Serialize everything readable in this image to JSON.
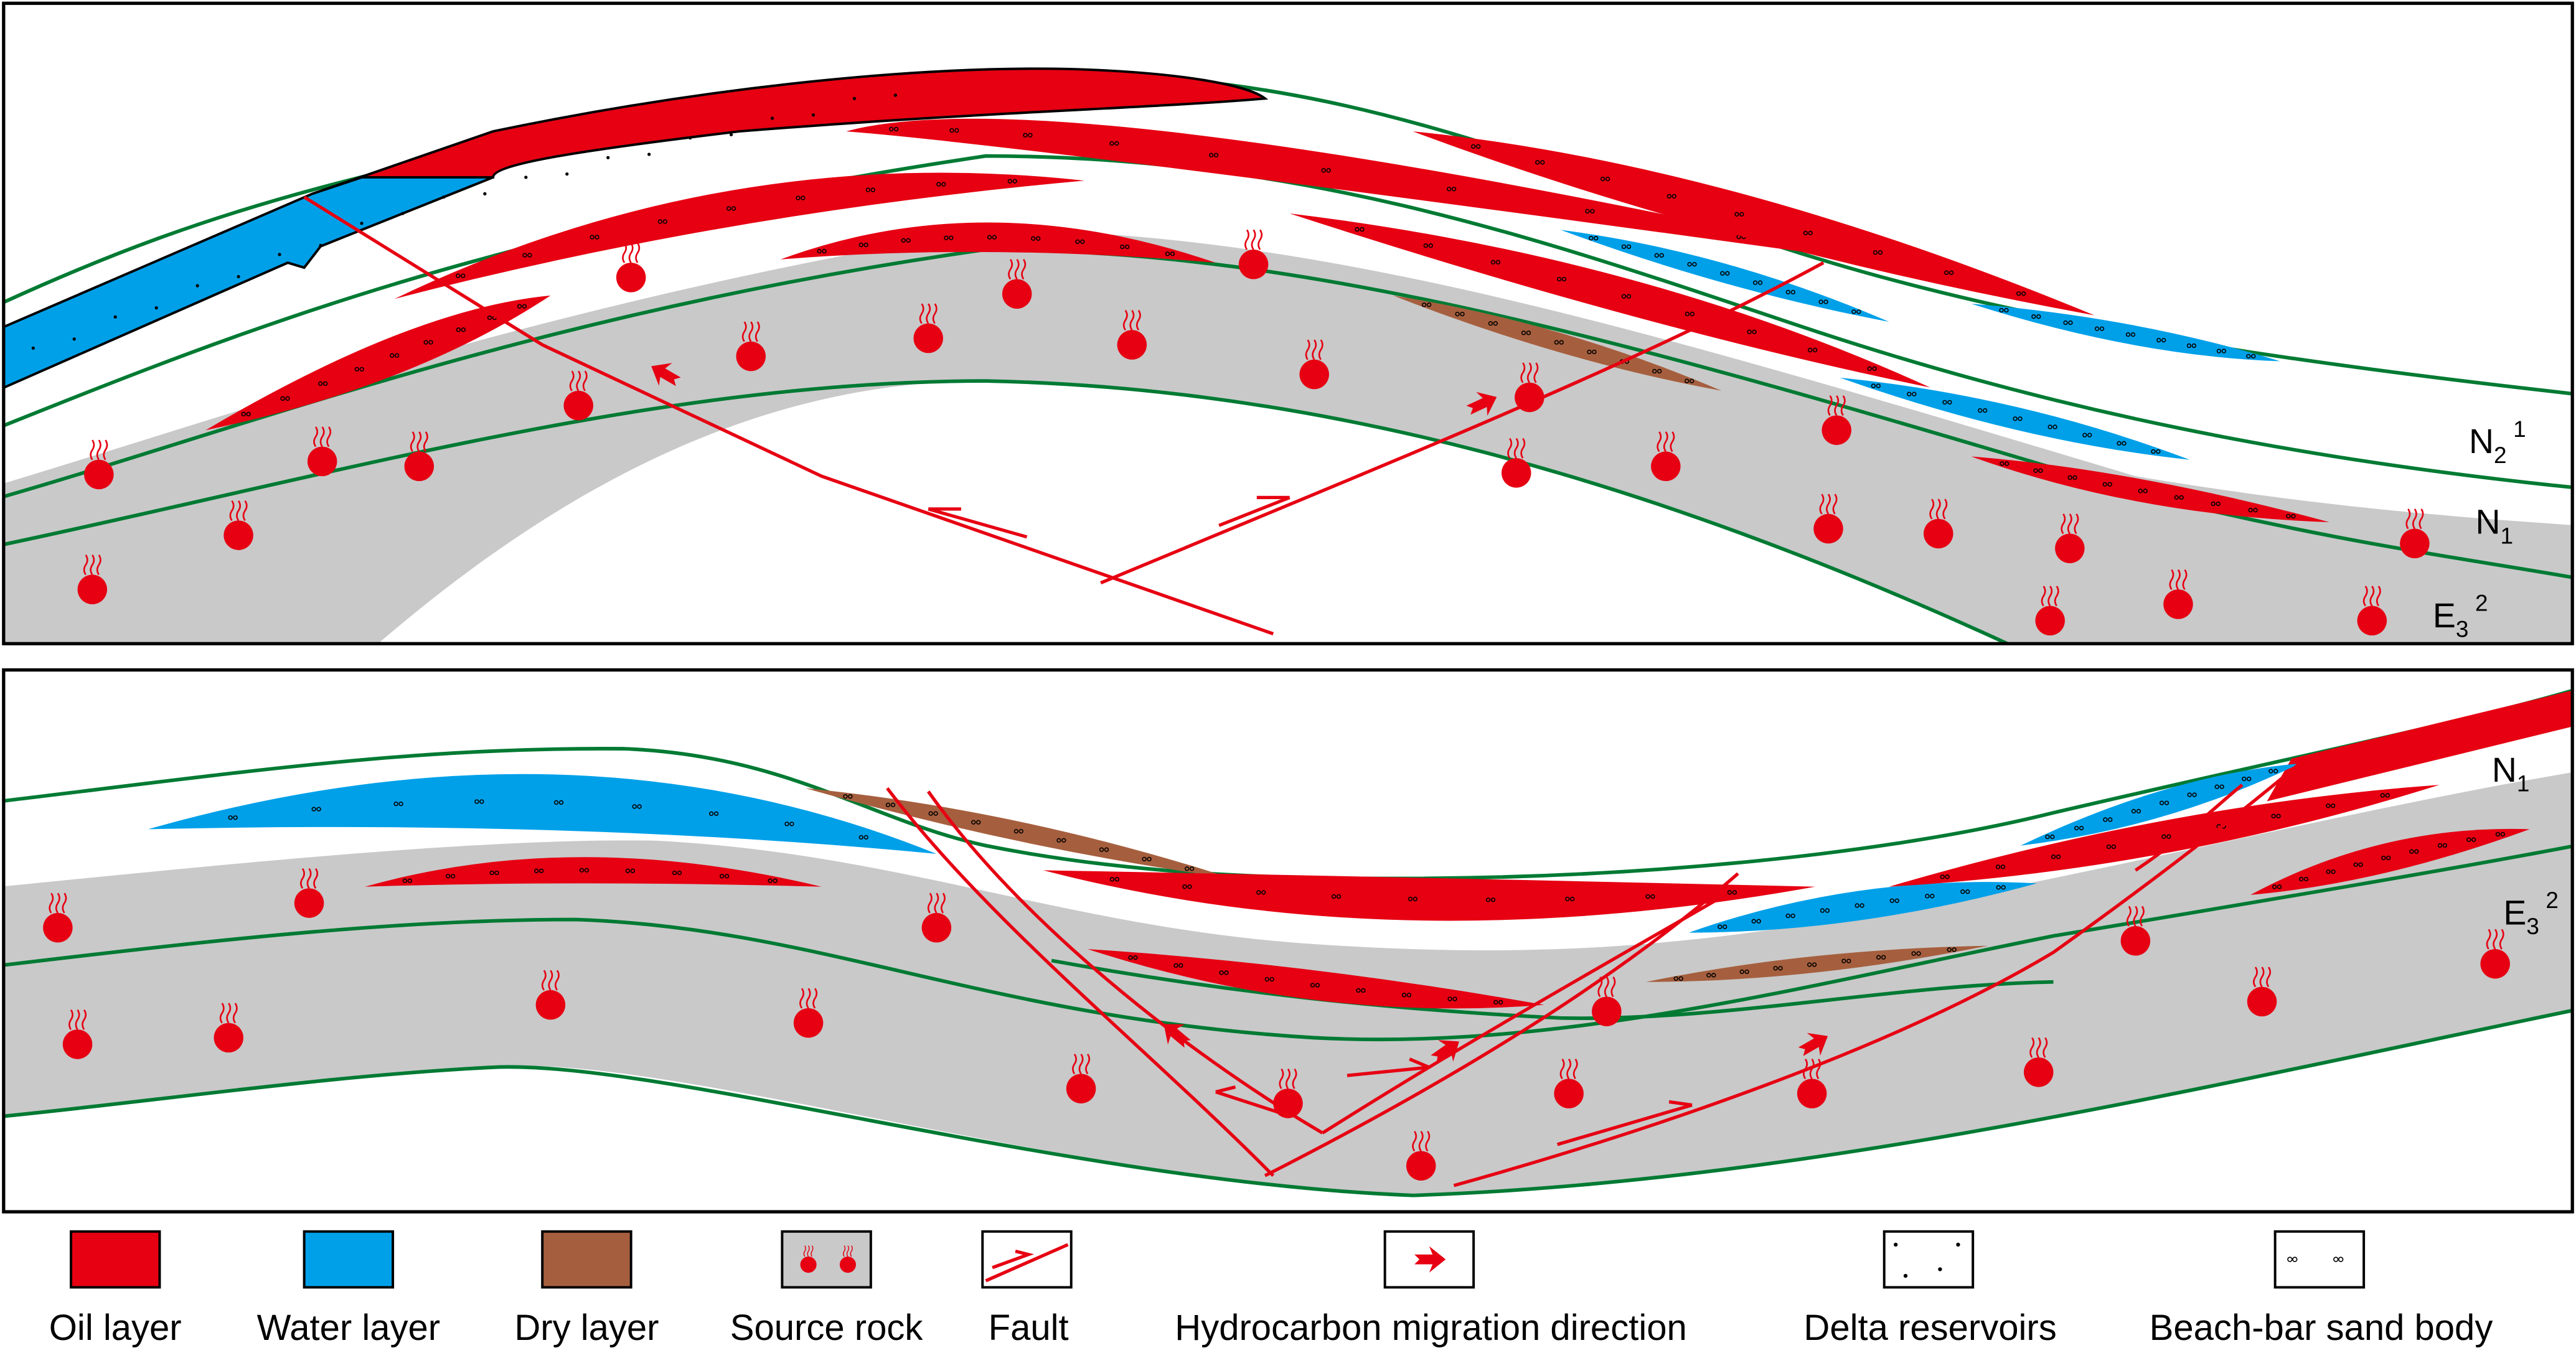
{
  "colors": {
    "oil": "#e60012",
    "water": "#00a0e9",
    "dry": "#a65f3e",
    "source": "#c9c9c9",
    "horizon": "#007a33",
    "fault": "#e60012"
  },
  "top_section": {
    "strata": [
      {
        "main": "N",
        "sub": "2",
        "sup": "1"
      },
      {
        "main": "N",
        "sub": "1",
        "sup": ""
      },
      {
        "main": "E",
        "sub": "3",
        "sup": "2"
      }
    ]
  },
  "bottom_section": {
    "strata": [
      {
        "main": "N",
        "sub": "1",
        "sup": ""
      },
      {
        "main": "E",
        "sub": "3",
        "sup": "2"
      }
    ]
  },
  "legend": [
    {
      "label": "Oil layer",
      "icon": "oil-layer-swatch"
    },
    {
      "label": "Water layer",
      "icon": "water-layer-swatch"
    },
    {
      "label": "Dry layer",
      "icon": "dry-layer-swatch"
    },
    {
      "label": "Source rock",
      "icon": "source-rock-swatch"
    },
    {
      "label": "Fault",
      "icon": "fault-swatch"
    },
    {
      "label": "Hydrocarbon migration direction",
      "icon": "migration-arrow-swatch"
    },
    {
      "label": "Delta reservoirs",
      "icon": "delta-dots-swatch"
    },
    {
      "label": "Beach-bar sand body",
      "icon": "beach-bar-circles-swatch"
    }
  ]
}
